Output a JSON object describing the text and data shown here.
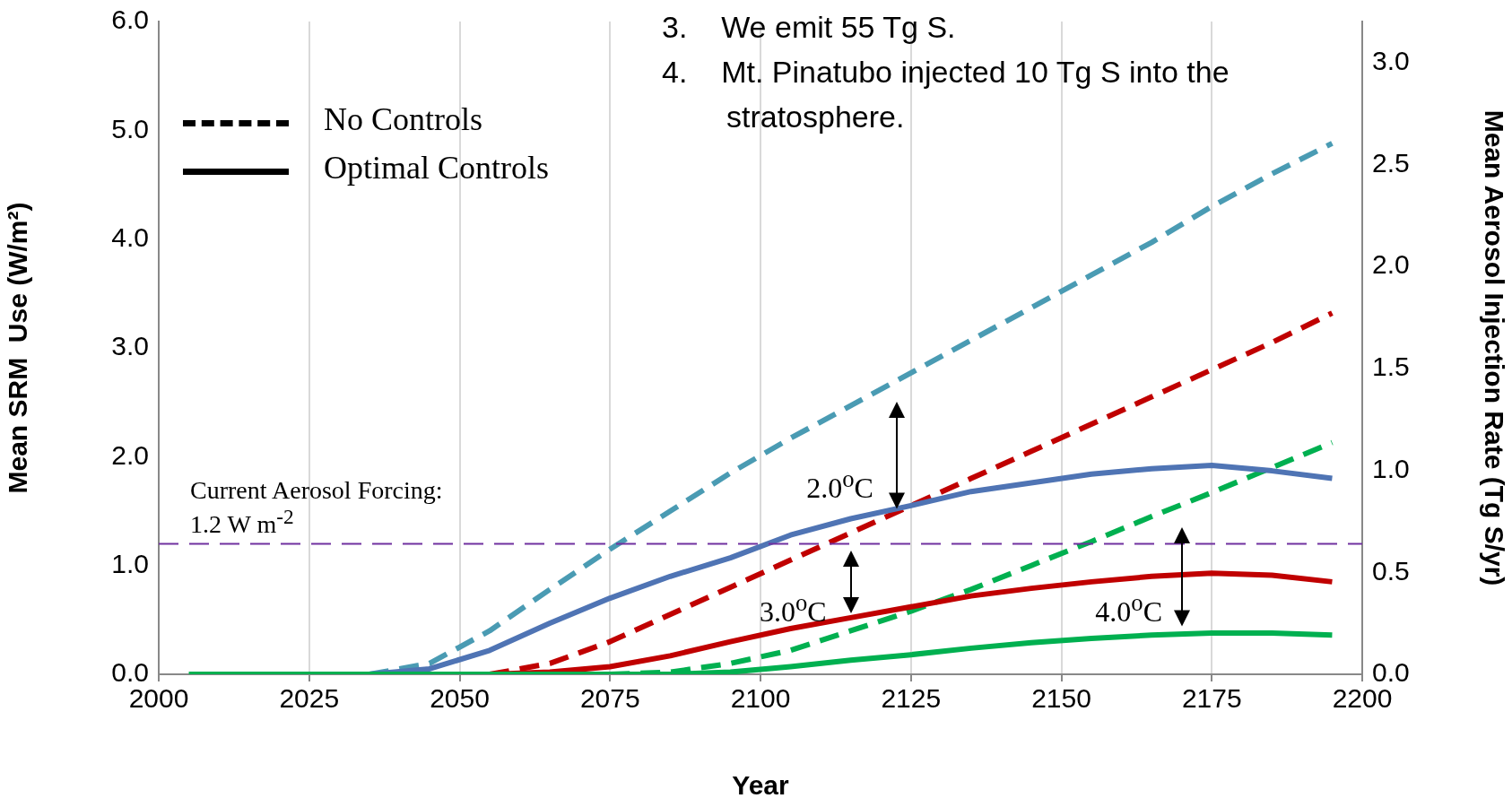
{
  "chart_data": {
    "type": "line",
    "xlabel": "Year",
    "ylabel": "Mean SRM  Use (W/m²)",
    "y2label": "Mean Aerosol Injection Rate (Tg S/yr)",
    "x": [
      2005,
      2015,
      2025,
      2035,
      2045,
      2055,
      2065,
      2075,
      2085,
      2095,
      2105,
      2115,
      2125,
      2135,
      2145,
      2155,
      2165,
      2175,
      2185,
      2195
    ],
    "xlim": [
      2000,
      2200
    ],
    "xticks": [
      2000,
      2025,
      2050,
      2075,
      2100,
      2125,
      2150,
      2175,
      2200
    ],
    "ylim": [
      0,
      6
    ],
    "yticks": [
      {
        "value": 0,
        "label": "0.0"
      },
      {
        "value": 1,
        "label": "1.0"
      },
      {
        "value": 2,
        "label": "2.0"
      },
      {
        "value": 3,
        "label": "3.0"
      },
      {
        "value": 4,
        "label": "4.0"
      },
      {
        "value": 5,
        "label": "5.0"
      },
      {
        "value": 6,
        "label": "6.0"
      }
    ],
    "y2lim": [
      0,
      3.2
    ],
    "y2ticks": [
      {
        "value": 0,
        "label": "0.0"
      },
      0.5,
      {
        "value": 1,
        "label": "1.0"
      },
      1.5,
      {
        "value": 2,
        "label": "2.0"
      },
      2.5,
      {
        "value": 3,
        "label": "3.0"
      }
    ],
    "grid": "x",
    "legend": false,
    "marker": "none",
    "series": [
      {
        "color": "#4a9bb3",
        "line_style": "dashed",
        "values": [
          null,
          null,
          null,
          0,
          0.1,
          0.4,
          0.78,
          1.15,
          1.5,
          1.85,
          2.17,
          2.47,
          2.77,
          3.07,
          3.37,
          3.67,
          3.97,
          4.3,
          4.6,
          4.88
        ]
      },
      {
        "color": "#c00000",
        "line_style": "dashed",
        "values": [
          null,
          null,
          null,
          null,
          null,
          0,
          0.1,
          0.3,
          0.55,
          0.8,
          1.05,
          1.3,
          1.55,
          1.8,
          2.05,
          2.3,
          2.55,
          2.8,
          3.05,
          3.32
        ]
      },
      {
        "color": "#00b050",
        "line_style": "dashed",
        "values": [
          null,
          null,
          null,
          null,
          null,
          null,
          null,
          0,
          0.02,
          0.1,
          0.22,
          0.4,
          0.58,
          0.78,
          1.0,
          1.22,
          1.45,
          1.67,
          1.9,
          2.13
        ]
      },
      {
        "color": "#4f74b4",
        "line_style": "solid",
        "values": [
          null,
          null,
          null,
          0,
          0.05,
          0.22,
          0.47,
          0.7,
          0.9,
          1.07,
          1.28,
          1.43,
          1.55,
          1.68,
          1.76,
          1.84,
          1.89,
          1.92,
          1.87,
          1.8
        ]
      },
      {
        "color": "#c00000",
        "line_style": "solid",
        "values": [
          null,
          null,
          null,
          null,
          null,
          0,
          0.02,
          0.07,
          0.17,
          0.3,
          0.42,
          0.52,
          0.62,
          0.72,
          0.79,
          0.85,
          0.9,
          0.93,
          0.91,
          0.85
        ]
      },
      {
        "color": "#00b050",
        "line_style": "solid",
        "values": [
          0,
          0,
          0,
          0,
          0,
          0,
          0,
          0,
          0,
          0.02,
          0.07,
          0.13,
          0.18,
          0.24,
          0.29,
          0.33,
          0.36,
          0.38,
          0.38,
          0.36
        ]
      }
    ],
    "ref_lines": [
      {
        "axis": "y",
        "value": 1.2,
        "label": "Current Aerosol Forcing: 1.2 W m$^{-2}$",
        "color": "#7030a0",
        "line_style": "dashed"
      }
    ],
    "annotations": [
      "3.    We emit 55 Tg S.",
      "4.    Mt. Pinatubo injected 10 Tg S into the stratosphere.",
      "No Controls",
      "Optimal Controls",
      "2.0$^{o}$C",
      "3.0$^{o}$C",
      {
        "text": "4.0$^{o}$C",
        "x": 2170,
        "y": 1.2
      }
    ]
  }
}
